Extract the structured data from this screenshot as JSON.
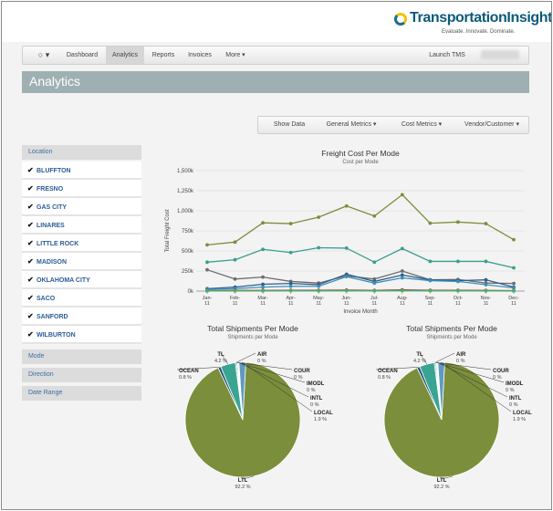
{
  "logo": {
    "name": "TransportationInsight",
    "tagline": "Evaluate. Innovate. Dominate."
  },
  "nav": {
    "logo_label": "○ ▾",
    "items": [
      {
        "label": "Dashboard"
      },
      {
        "label": "Analytics"
      },
      {
        "label": "Reports"
      },
      {
        "label": "Invoices"
      },
      {
        "label": "More ▾"
      }
    ],
    "launch_label": "Launch TMS"
  },
  "header": {
    "title": "Analytics"
  },
  "toolbar": {
    "items": [
      {
        "label": "Show Data"
      },
      {
        "label": "General Metrics ▾"
      },
      {
        "label": "Cost Metrics ▾"
      },
      {
        "label": "Vendor/Customer ▾"
      }
    ]
  },
  "sidebar": {
    "location_label": "Location",
    "locations": [
      {
        "label": "BLUFFTON"
      },
      {
        "label": "FRESNO"
      },
      {
        "label": "GAS CITY"
      },
      {
        "label": "LINARES"
      },
      {
        "label": "LITTLE ROCK"
      },
      {
        "label": "MADISON"
      },
      {
        "label": "OKLAHOMA CITY"
      },
      {
        "label": "SACO"
      },
      {
        "label": "SANFORD"
      },
      {
        "label": "WILBURTON"
      }
    ],
    "mode_label": "Mode",
    "direction_label": "Direction",
    "date_range_label": "Date Range"
  },
  "chart_data": [
    {
      "type": "line",
      "title": "Freight Cost Per Mode",
      "subtitle": "Cost per Mode",
      "xlabel": "Invoice Month",
      "ylabel": "Total Freight Cost",
      "categories": [
        "Jan-11",
        "Feb-11",
        "Mar-11",
        "Apr-11",
        "May-11",
        "Jun-11",
        "Jul-11",
        "Aug-11",
        "Sep-11",
        "Oct-11",
        "Nov-11",
        "Dec-11"
      ],
      "ylim": [
        0,
        1500
      ],
      "yticks": [
        "0k",
        "250k",
        "500k",
        "750k",
        "1,000k",
        "1,250k",
        "1,500k"
      ],
      "colors": [
        "#7a8f3e",
        "#3a9e8c",
        "#6d6d6d",
        "#2e5e8e",
        "#3d8fb8",
        "#8c4a4a",
        "#4fae62"
      ],
      "series": [
        {
          "values": [
            575,
            610,
            850,
            840,
            920,
            1060,
            935,
            1200,
            845,
            860,
            840,
            640
          ]
        },
        {
          "values": [
            360,
            390,
            520,
            480,
            540,
            535,
            360,
            530,
            370,
            370,
            370,
            290
          ]
        },
        {
          "values": [
            265,
            150,
            175,
            120,
            100,
            190,
            150,
            250,
            140,
            145,
            100,
            95
          ]
        },
        {
          "values": [
            30,
            50,
            85,
            95,
            80,
            210,
            120,
            200,
            140,
            130,
            140,
            50
          ]
        },
        {
          "values": [
            20,
            30,
            50,
            60,
            60,
            180,
            100,
            165,
            130,
            120,
            80,
            40
          ]
        },
        {
          "values": [
            5,
            8,
            8,
            10,
            10,
            12,
            8,
            15,
            10,
            10,
            8,
            6
          ]
        },
        {
          "values": [
            2,
            3,
            3,
            4,
            3,
            5,
            3,
            6,
            4,
            4,
            3,
            2
          ]
        }
      ]
    },
    {
      "type": "pie",
      "title": "Total Shipments Per Mode",
      "subtitle": "Shipments per Mode",
      "slices": [
        {
          "name": "LTL",
          "pct_label": "92.2 %",
          "value": 92.2,
          "color": "#7b8e3b"
        },
        {
          "name": "OCEAN",
          "pct_label": "0.8 %",
          "value": 0.8,
          "color": "#1e4f75"
        },
        {
          "name": "TL",
          "pct_label": "4.2 %",
          "value": 4.2,
          "color": "#3aa492"
        },
        {
          "name": "AIR",
          "pct_label": "0 %",
          "value": 0.3,
          "color": "#2e5e8e"
        },
        {
          "name": "COUR",
          "pct_label": "0 %",
          "value": 0.3,
          "color": "#3d8fb8"
        },
        {
          "name": "IMODL",
          "pct_label": "0 %",
          "value": 0.2,
          "color": "#555555"
        },
        {
          "name": "INTL",
          "pct_label": "0 %",
          "value": 0.2,
          "color": "#8a4a4a"
        },
        {
          "name": "LOCAL",
          "pct_label": "1.9 %",
          "value": 1.9,
          "color": "#5d9bc2"
        }
      ]
    },
    {
      "type": "pie",
      "title": "Total Shipments Per Mode",
      "subtitle": "Shipments per Mode",
      "slices": [
        {
          "name": "LTL",
          "pct_label": "92.2 %",
          "value": 92.2,
          "color": "#7b8e3b"
        },
        {
          "name": "OCEAN",
          "pct_label": "0.8 %",
          "value": 0.8,
          "color": "#1e4f75"
        },
        {
          "name": "TL",
          "pct_label": "4.2 %",
          "value": 4.2,
          "color": "#3aa492"
        },
        {
          "name": "AIR",
          "pct_label": "0 %",
          "value": 0.3,
          "color": "#2e5e8e"
        },
        {
          "name": "COUR",
          "pct_label": "0 %",
          "value": 0.3,
          "color": "#3d8fb8"
        },
        {
          "name": "IMODL",
          "pct_label": "0 %",
          "value": 0.2,
          "color": "#555555"
        },
        {
          "name": "INTL",
          "pct_label": "0 %",
          "value": 0.2,
          "color": "#8a4a4a"
        },
        {
          "name": "LOCAL",
          "pct_label": "1.9 %",
          "value": 1.9,
          "color": "#5d9bc2"
        }
      ]
    }
  ]
}
